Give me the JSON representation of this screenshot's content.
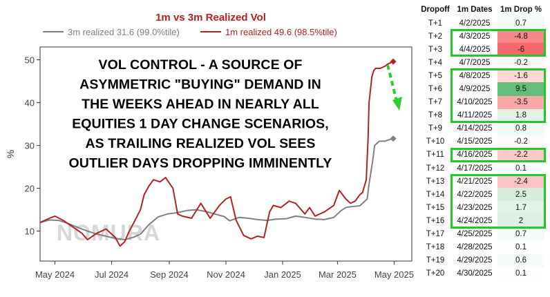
{
  "chart_data": {
    "type": "line",
    "title": "1m vs 3m Realized Vol",
    "ylabel": "%",
    "xlabel": "",
    "ylim": [
      3,
      53
    ],
    "yticks": [
      10,
      20,
      30,
      40,
      50
    ],
    "xticks": [
      "May 2024",
      "Jul 2024",
      "Sep 2024",
      "Nov 2024",
      "Jan 2025",
      "Mar 2025",
      "May 2025"
    ],
    "grid": false,
    "legend_position": "top",
    "watermark": "NOMURA",
    "annotation": "VOL CONTROL - A SOURCE OF ASYMMETRIC \"BUYING\" DEMAND IN THE WEEKS AHEAD IN NEARLY ALL EQUITIES 1 DAY CHANGE SCENARIOS, AS TRAILING REALIZED VOL SEES OUTLIER DAYS DROPPING IMMINENTLY",
    "series": [
      {
        "name": "3m realized 31.6 (99.0%tile)",
        "color": "#808080",
        "x": [
          "2024-04-15",
          "2024-04-25",
          "2024-05-05",
          "2024-05-15",
          "2024-05-25",
          "2024-06-05",
          "2024-06-15",
          "2024-06-25",
          "2024-07-05",
          "2024-07-15",
          "2024-07-25",
          "2024-08-01",
          "2024-08-10",
          "2024-08-20",
          "2024-08-30",
          "2024-09-10",
          "2024-09-20",
          "2024-09-30",
          "2024-10-10",
          "2024-10-20",
          "2024-10-30",
          "2024-11-05",
          "2024-11-15",
          "2024-11-25",
          "2024-12-05",
          "2024-12-15",
          "2024-12-25",
          "2025-01-05",
          "2025-01-15",
          "2025-01-25",
          "2025-02-05",
          "2025-02-15",
          "2025-02-25",
          "2025-03-05",
          "2025-03-10",
          "2025-03-15",
          "2025-03-25",
          "2025-04-02",
          "2025-04-04",
          "2025-04-08",
          "2025-04-10",
          "2025-04-15",
          "2025-04-21",
          "2025-04-25",
          "2025-04-30"
        ],
        "y": [
          12.0,
          12.6,
          12.5,
          11.8,
          10.9,
          10.0,
          9.3,
          8.8,
          8.3,
          8.0,
          8.6,
          9.3,
          11.5,
          13.3,
          14.0,
          14.3,
          14.8,
          15.0,
          14.6,
          14.0,
          13.4,
          12.4,
          13.2,
          13.0,
          12.7,
          12.5,
          12.8,
          12.9,
          13.5,
          13.2,
          12.8,
          12.7,
          13.2,
          14.8,
          15.5,
          15.7,
          15.9,
          17.5,
          21.0,
          26.5,
          30.0,
          31.0,
          31.0,
          31.3,
          31.6
        ]
      },
      {
        "name": "1m realized 49.6 (98.5%tile)",
        "color": "#b22222",
        "x": [
          "2024-04-15",
          "2024-04-25",
          "2024-05-01",
          "2024-05-10",
          "2024-05-20",
          "2024-05-30",
          "2024-06-05",
          "2024-06-15",
          "2024-06-25",
          "2024-07-05",
          "2024-07-10",
          "2024-07-15",
          "2024-07-20",
          "2024-07-25",
          "2024-08-01",
          "2024-08-05",
          "2024-08-10",
          "2024-08-15",
          "2024-08-22",
          "2024-08-28",
          "2024-09-05",
          "2024-09-10",
          "2024-09-15",
          "2024-09-25",
          "2024-10-05",
          "2024-10-15",
          "2024-10-25",
          "2024-11-01",
          "2024-11-06",
          "2024-11-12",
          "2024-11-20",
          "2024-11-28",
          "2024-12-05",
          "2024-12-12",
          "2024-12-18",
          "2024-12-22",
          "2024-12-30",
          "2025-01-08",
          "2025-01-15",
          "2025-01-25",
          "2025-01-30",
          "2025-02-05",
          "2025-02-15",
          "2025-02-25",
          "2025-03-03",
          "2025-03-10",
          "2025-03-15",
          "2025-03-20",
          "2025-03-25",
          "2025-03-28",
          "2025-04-01",
          "2025-04-03",
          "2025-04-04",
          "2025-04-07",
          "2025-04-09",
          "2025-04-11",
          "2025-04-16",
          "2025-04-21",
          "2025-04-24",
          "2025-04-30"
        ],
        "y": [
          12.0,
          13.0,
          13.5,
          12.5,
          11.0,
          9.5,
          8.0,
          9.5,
          10.5,
          8.5,
          6.5,
          7.5,
          10.0,
          12.0,
          15.0,
          18.5,
          20.5,
          22.0,
          21.5,
          22.5,
          20.0,
          14.0,
          13.5,
          13.0,
          16.5,
          13.0,
          16.0,
          17.5,
          18.0,
          12.5,
          9.0,
          8.2,
          8.8,
          8.5,
          14.5,
          16.0,
          15.5,
          17.0,
          16.5,
          14.0,
          15.5,
          13.5,
          14.5,
          16.0,
          19.5,
          17.5,
          16.5,
          17.0,
          18.5,
          19.0,
          22.0,
          32.0,
          40.0,
          46.0,
          47.5,
          48.0,
          48.0,
          48.5,
          49.0,
          49.6
        ]
      }
    ]
  },
  "table": {
    "headers": [
      "Dropoff",
      "1m Dates",
      "1m Drop %"
    ],
    "rows": [
      {
        "dropoff": "T+1",
        "date": "4/2/2025",
        "drop": "0.7",
        "value": 0.7
      },
      {
        "dropoff": "T+2",
        "date": "4/3/2025",
        "drop": "-4.8",
        "value": -4.8
      },
      {
        "dropoff": "T+3",
        "date": "4/4/2025",
        "drop": "-6",
        "value": -6
      },
      {
        "dropoff": "T+4",
        "date": "4/7/2025",
        "drop": "-0.2",
        "value": -0.2
      },
      {
        "dropoff": "T+5",
        "date": "4/8/2025",
        "drop": "-1.6",
        "value": -1.6
      },
      {
        "dropoff": "T+6",
        "date": "4/9/2025",
        "drop": "9.5",
        "value": 9.5
      },
      {
        "dropoff": "T+7",
        "date": "4/10/2025",
        "drop": "-3.5",
        "value": -3.5
      },
      {
        "dropoff": "T+8",
        "date": "4/11/2025",
        "drop": "1.8",
        "value": 1.8
      },
      {
        "dropoff": "T+9",
        "date": "4/14/2025",
        "drop": "0.8",
        "value": 0.8
      },
      {
        "dropoff": "T+10",
        "date": "4/15/2025",
        "drop": "-0.2",
        "value": -0.2
      },
      {
        "dropoff": "T+11",
        "date": "4/16/2025",
        "drop": "-2.2",
        "value": -2.2
      },
      {
        "dropoff": "T+12",
        "date": "4/17/2025",
        "drop": "0.1",
        "value": 0.1
      },
      {
        "dropoff": "T+13",
        "date": "4/21/2025",
        "drop": "-2.4",
        "value": -2.4
      },
      {
        "dropoff": "T+14",
        "date": "4/22/2025",
        "drop": "2.5",
        "value": 2.5
      },
      {
        "dropoff": "T+15",
        "date": "4/23/2025",
        "drop": "1.7",
        "value": 1.7
      },
      {
        "dropoff": "T+16",
        "date": "4/24/2025",
        "drop": "2",
        "value": 2
      },
      {
        "dropoff": "T+17",
        "date": "4/25/2025",
        "drop": "0.7",
        "value": 0.7
      },
      {
        "dropoff": "T+18",
        "date": "4/28/2025",
        "drop": "0.1",
        "value": 0.1
      },
      {
        "dropoff": "T+19",
        "date": "4/29/2025",
        "drop": "0.6",
        "value": 0.6
      },
      {
        "dropoff": "T+20",
        "date": "4/30/2025",
        "drop": "0.1",
        "value": 0.1
      }
    ],
    "highlight_groups": [
      [
        "T+2",
        "T+3"
      ],
      [
        "T+5",
        "T+8"
      ],
      [
        "T+11",
        "T+11"
      ],
      [
        "T+13",
        "T+16"
      ]
    ],
    "colors": {
      "highlight_border": "#22c82a",
      "positive_max": "#63be7b",
      "negative_max": "#f8696b"
    }
  },
  "arrow_color": "#2ecc2e"
}
